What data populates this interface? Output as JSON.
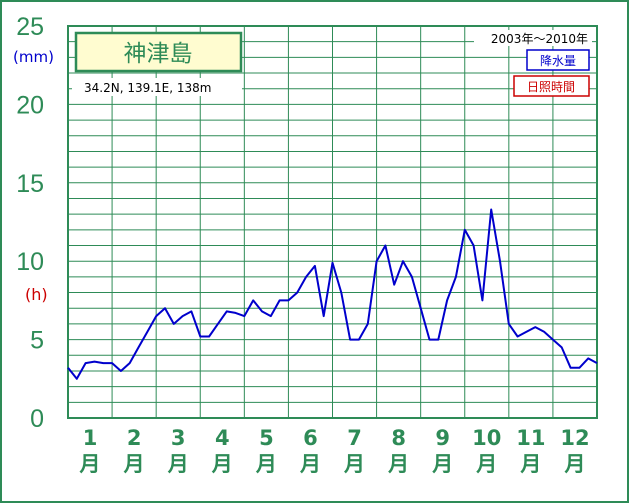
{
  "chart_data": {
    "type": "line",
    "title": "神津島",
    "location": "34.2N,  139.1E,  138m",
    "period": "2003年〜2010年",
    "legend": [
      {
        "label": "降水量",
        "color": "#0000cc"
      },
      {
        "label": "日照時間",
        "color": "#cc0000"
      }
    ],
    "y_unit_top": "(mm)",
    "y_unit_mid": "(h)",
    "yticks": [
      "25",
      "20",
      "15",
      "10",
      "5",
      "0"
    ],
    "ylim": [
      0,
      25
    ],
    "months": [
      "1",
      "2",
      "3",
      "4",
      "5",
      "6",
      "7",
      "8",
      "9",
      "10",
      "11",
      "12"
    ],
    "month_char": "月",
    "grid": true,
    "series": [
      {
        "color": "#0000cc",
        "x": [
          0.0,
          0.2,
          0.4,
          0.6,
          0.8,
          1.0,
          1.2,
          1.4,
          1.6,
          1.8,
          2.0,
          2.2,
          2.4,
          2.6,
          2.8,
          3.0,
          3.2,
          3.4,
          3.6,
          3.8,
          4.0,
          4.2,
          4.4,
          4.6,
          4.8,
          5.0,
          5.2,
          5.4,
          5.6,
          5.8,
          6.0,
          6.2,
          6.4,
          6.6,
          6.8,
          7.0,
          7.2,
          7.4,
          7.6,
          7.8,
          8.0,
          8.2,
          8.4,
          8.6,
          8.8,
          9.0,
          9.2,
          9.4,
          9.6,
          9.8,
          10.0,
          10.2,
          10.4,
          10.6,
          10.8,
          11.0,
          11.2,
          11.4,
          11.6,
          11.8,
          12.0
        ],
        "values": [
          3.2,
          2.5,
          3.5,
          3.6,
          3.5,
          3.5,
          3.0,
          3.5,
          4.5,
          5.5,
          6.5,
          7.0,
          6.0,
          6.5,
          6.8,
          5.2,
          5.2,
          6.0,
          6.8,
          6.7,
          6.5,
          7.5,
          6.8,
          6.5,
          7.5,
          7.5,
          8.0,
          9.0,
          9.7,
          6.5,
          9.9,
          8.0,
          5.0,
          5.0,
          6.0,
          10.0,
          11.0,
          8.5,
          10.0,
          9.0,
          7.0,
          5.0,
          5.0,
          7.5,
          9.0,
          12.0,
          11.0,
          7.5,
          13.3,
          10.0,
          6.0,
          5.2,
          5.5,
          5.8,
          5.5,
          5.0,
          4.5,
          3.2,
          3.2,
          3.8,
          3.5
        ]
      }
    ]
  }
}
